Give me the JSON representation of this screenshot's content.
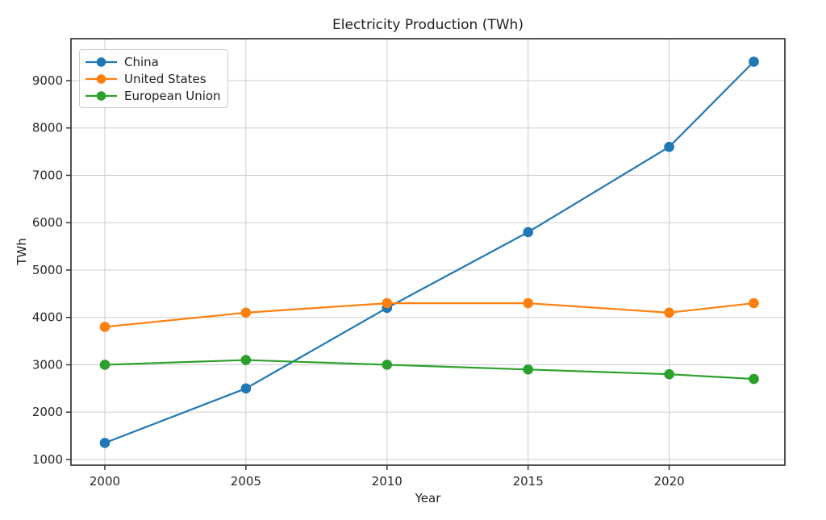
{
  "figure": {
    "background": "#ffffff"
  },
  "chart_data": {
    "type": "line",
    "title": "Electricity Production (TWh)",
    "xlabel": "Year",
    "ylabel": "TWh",
    "x": [
      2000,
      2005,
      2010,
      2015,
      2020,
      2023
    ],
    "series": [
      {
        "name": "China",
        "color": "#1f77b4",
        "values": [
          1350,
          2500,
          4200,
          5800,
          7600,
          9400
        ]
      },
      {
        "name": "United States",
        "color": "#ff7f0e",
        "values": [
          3800,
          4100,
          4300,
          4300,
          4100,
          4300
        ]
      },
      {
        "name": "European Union",
        "color": "#2ca02c",
        "values": [
          3000,
          3100,
          3000,
          2900,
          2800,
          2700
        ]
      }
    ],
    "xticks": [
      2000,
      2005,
      2010,
      2015,
      2020
    ],
    "yticks": [
      1000,
      2000,
      3000,
      4000,
      5000,
      6000,
      7000,
      8000,
      9000
    ],
    "xlim": [
      1998.8,
      2024.1
    ],
    "ylim": [
      880,
      9885
    ],
    "grid": true,
    "legend_position": "upper left",
    "grid_color": "#cdcdcd",
    "spine_color": "#333333",
    "tick_color": "#333333",
    "text_color": "#262626"
  }
}
